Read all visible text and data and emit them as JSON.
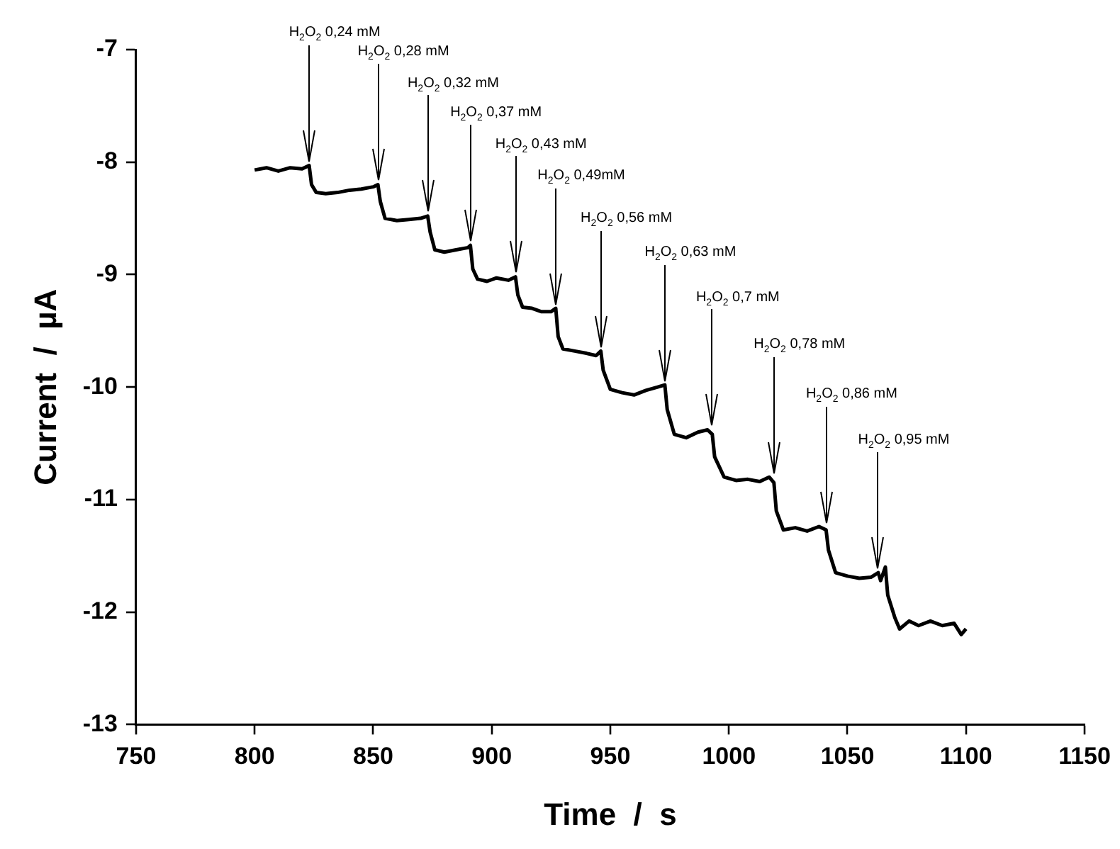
{
  "chart_data": {
    "type": "line",
    "xlabel": "Time  /  s",
    "ylabel": "Current  /  µA",
    "xlim": [
      750,
      1150
    ],
    "xticks": [
      750,
      800,
      850,
      900,
      950,
      1000,
      1050,
      1100,
      1150
    ],
    "ylim": [
      -13,
      -7
    ],
    "yticks": [
      -13,
      -12,
      -11,
      -10,
      -9,
      -8,
      -7
    ],
    "grid": false,
    "legend": false,
    "marker": "none",
    "line_style": "solid",
    "series": [
      {
        "color": "#000000",
        "x": [
          800,
          805,
          810,
          815,
          820,
          823,
          824,
          826,
          830,
          835,
          840,
          845,
          850,
          852,
          853,
          855,
          860,
          865,
          870,
          873,
          874,
          876,
          880,
          885,
          890,
          891,
          892,
          894,
          898,
          902,
          907,
          910,
          911,
          913,
          917,
          921,
          925,
          927,
          928,
          930,
          935,
          940,
          944,
          946,
          947,
          950,
          955,
          960,
          965,
          970,
          973,
          974,
          977,
          982,
          987,
          991,
          993,
          994,
          998,
          1003,
          1008,
          1013,
          1017,
          1019,
          1020,
          1023,
          1028,
          1033,
          1038,
          1041,
          1042,
          1045,
          1050,
          1055,
          1060,
          1063,
          1064,
          1066,
          1067,
          1070,
          1072,
          1076,
          1080,
          1085,
          1090,
          1095,
          1098,
          1100
        ],
        "values": [
          -8.07,
          -8.05,
          -8.08,
          -8.05,
          -8.06,
          -8.03,
          -8.2,
          -8.27,
          -8.28,
          -8.27,
          -8.25,
          -8.24,
          -8.22,
          -8.2,
          -8.35,
          -8.5,
          -8.52,
          -8.51,
          -8.5,
          -8.48,
          -8.62,
          -8.78,
          -8.8,
          -8.78,
          -8.76,
          -8.74,
          -8.95,
          -9.04,
          -9.06,
          -9.03,
          -9.05,
          -9.02,
          -9.18,
          -9.29,
          -9.3,
          -9.33,
          -9.33,
          -9.3,
          -9.55,
          -9.66,
          -9.68,
          -9.7,
          -9.72,
          -9.68,
          -9.85,
          -10.02,
          -10.05,
          -10.07,
          -10.03,
          -10.0,
          -9.98,
          -10.2,
          -10.42,
          -10.45,
          -10.4,
          -10.38,
          -10.42,
          -10.62,
          -10.8,
          -10.83,
          -10.82,
          -10.84,
          -10.8,
          -10.85,
          -11.1,
          -11.27,
          -11.25,
          -11.28,
          -11.24,
          -11.27,
          -11.45,
          -11.65,
          -11.68,
          -11.7,
          -11.69,
          -11.65,
          -11.72,
          -11.6,
          -11.85,
          -12.05,
          -12.15,
          -12.08,
          -12.12,
          -12.08,
          -12.12,
          -12.1,
          -12.2,
          -12.15
        ]
      }
    ],
    "annotations": [
      {
        "text": "H$_{2}$O$_{2}$ 0,24 mM",
        "x": 823,
        "y": -8.03
      },
      {
        "text": "H$_{2}$O$_{2}$ 0,28 mM",
        "x": 852,
        "y": -8.2
      },
      {
        "text": "H$_{2}$O$_{2}$ 0,32 mM",
        "x": 873,
        "y": -8.48
      },
      {
        "text": "H$_{2}$O$_{2}$ 0,37 mM",
        "x": 891,
        "y": -8.74
      },
      {
        "text": "H$_{2}$O$_{2}$ 0,43 mM",
        "x": 910,
        "y": -9.02
      },
      {
        "text": "H$_{2}$O$_{2}$ 0,49mM",
        "x": 927,
        "y": -9.3
      },
      {
        "text": "H$_{2}$O$_{2}$ 0,56 mM",
        "x": 946,
        "y": -9.68
      },
      {
        "text": "H$_{2}$O$_{2}$ 0,63 mM",
        "x": 973,
        "y": -9.98
      },
      {
        "text": "H$_{2}$O$_{2}$ 0,7 mM",
        "x": 993,
        "y": -10.38
      },
      {
        "text": "H$_{2}$O$_{2}$ 0,78 mM",
        "x": 1019,
        "y": -10.8
      },
      {
        "text": "H$_{2}$O$_{2}$ 0,86 mM",
        "x": 1041,
        "y": -11.24
      },
      {
        "text": "H$_{2}$O$_{2}$ 0,95 mM",
        "x": 1063,
        "y": -11.65
      }
    ]
  }
}
